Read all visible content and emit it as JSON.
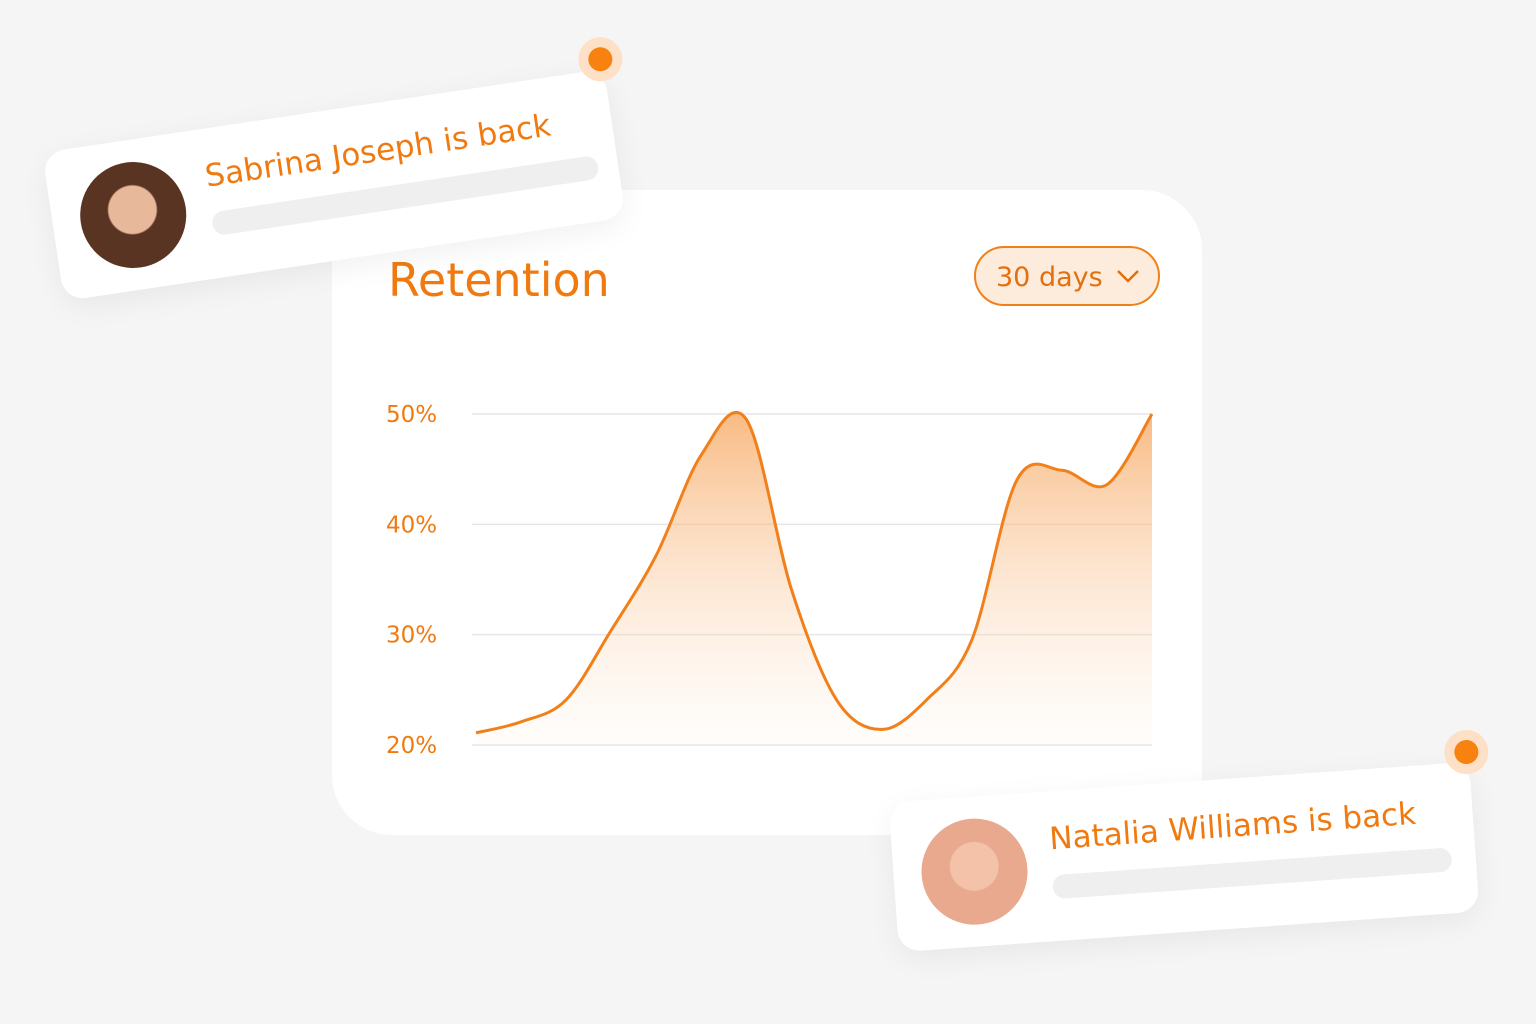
{
  "chart_data": {
    "type": "line",
    "title": "Retention",
    "dropdown": "30 days",
    "categories": [
      null,
      null,
      null,
      null,
      null,
      null,
      null,
      null,
      null,
      null,
      null,
      null,
      null,
      null,
      null,
      null
    ],
    "series": [
      {
        "color": "#f2801a",
        "values": [
          21.1,
          22.1,
          24.1,
          30.4,
          37.2,
          46.3,
          49.5,
          34.1,
          24.1,
          21.4,
          24.1,
          29.5,
          44,
          44.9,
          43.6,
          50
        ]
      }
    ],
    "ylim": [
      20,
      50
    ],
    "yticks": [
      {
        "value": 20,
        "label": "20%"
      },
      {
        "value": 30,
        "label": "30%"
      },
      {
        "value": 40,
        "label": "40%"
      },
      {
        "value": 50,
        "label": "50%"
      }
    ],
    "grid": true,
    "area": true
  },
  "notifications": [
    {
      "text": "Sabrina Joseph is back"
    },
    {
      "text": "Natalia Williams is back"
    }
  ]
}
